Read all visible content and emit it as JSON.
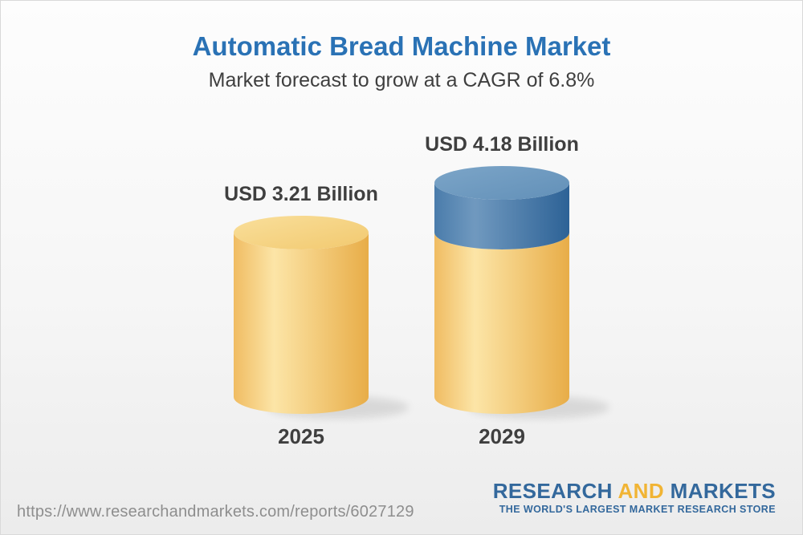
{
  "header": {
    "title": "Automatic Bread Machine Market",
    "subtitle": "Market forecast to grow at a CAGR of 6.8%"
  },
  "chart_data": {
    "type": "bar",
    "variant": "3d-cylinder",
    "title": "Automatic Bread Machine Market",
    "subtitle": "Market forecast to grow at a CAGR of 6.8%",
    "unit": "USD Billion",
    "cagr_percent": 6.8,
    "categories": [
      "2025",
      "2029"
    ],
    "values": [
      3.21,
      4.18
    ],
    "value_labels": [
      "USD 3.21 Billion",
      "USD 4.18 Billion"
    ],
    "growth_overlay": {
      "applies_to_category": "2029",
      "from_value": 3.21,
      "to_value": 4.18,
      "color_name": "blue"
    },
    "ylim": [
      0,
      4.18
    ],
    "axes_visible": false,
    "grid": false,
    "legend": "none",
    "palette": {
      "yellow": {
        "edge": "#E8AD48",
        "light": "#FCE5A7",
        "mid": "#F0BC62",
        "top_light": "#F9DF9B",
        "top_dark": "#F2C96F"
      },
      "blue": {
        "edge": "#2D6296",
        "light": "#7099BF",
        "mid": "#4A7CAB",
        "top_light": "#7CA5C8",
        "top_dark": "#6290B8"
      }
    },
    "base_color_name": "yellow"
  },
  "footer": {
    "url": "https://www.researchandmarkets.com/reports/6027129",
    "logo": {
      "word1": "RESEARCH",
      "word2": "AND",
      "word3": "MARKETS",
      "tagline": "THE WORLD'S LARGEST MARKET RESEARCH STORE",
      "blue": "#33689C",
      "yellow": "#F1B434"
    }
  },
  "colors": {
    "title_blue": "#2A72B5",
    "text_dark": "#3F3F3F",
    "url_gray": "#8E8E8E",
    "background_top": "#FDFDFD",
    "background_bottom": "#ECECEC",
    "border": "#D9D9D9",
    "shadow": "#000000"
  }
}
